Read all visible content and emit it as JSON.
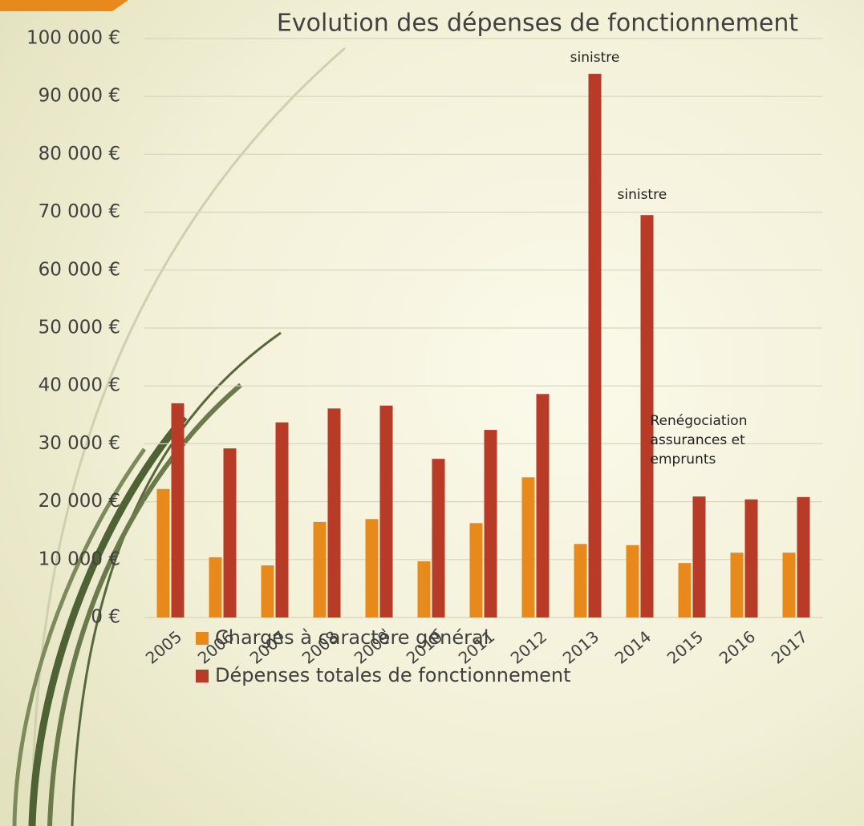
{
  "chart_data": {
    "type": "bar",
    "title": "Evolution des dépenses de fonctionnement",
    "categories": [
      "2005",
      "2006",
      "2007",
      "2008",
      "2009",
      "2010",
      "2011",
      "2012",
      "2013",
      "2014",
      "2015",
      "2016",
      "2017"
    ],
    "series": [
      {
        "name": "Charges à caractère général",
        "color": "#e8891c",
        "values": [
          22200,
          10400,
          9000,
          16500,
          17000,
          9700,
          16300,
          24200,
          12700,
          12500,
          9400,
          11200,
          11200
        ]
      },
      {
        "name": "Dépenses totales de fonctionnement",
        "color": "#b83b27",
        "values": [
          37000,
          29200,
          33700,
          36100,
          36600,
          27400,
          32400,
          38600,
          93900,
          69500,
          20900,
          20400,
          20800
        ]
      }
    ],
    "ylim": [
      0,
      100000
    ],
    "yticks": [
      {
        "value": 0,
        "label": "0 €"
      },
      {
        "value": 10000,
        "label": "10 000 €"
      },
      {
        "value": 20000,
        "label": "20 000 €"
      },
      {
        "value": 30000,
        "label": "30 000 €"
      },
      {
        "value": 40000,
        "label": "40 000 €"
      },
      {
        "value": 50000,
        "label": "50 000 €"
      },
      {
        "value": 60000,
        "label": "60 000 €"
      },
      {
        "value": 70000,
        "label": "70 000 €"
      },
      {
        "value": 80000,
        "label": "80 000 €"
      },
      {
        "value": 90000,
        "label": "90 000 €"
      },
      {
        "value": 100000,
        "label": "100 000 €"
      }
    ],
    "grid": true,
    "annotations": [
      {
        "lines": [
          "sinistre"
        ]
      },
      {
        "lines": [
          "sinistre"
        ]
      },
      {
        "lines": [
          "Renégociation",
          "assurances et",
          "emprunts"
        ]
      }
    ]
  }
}
